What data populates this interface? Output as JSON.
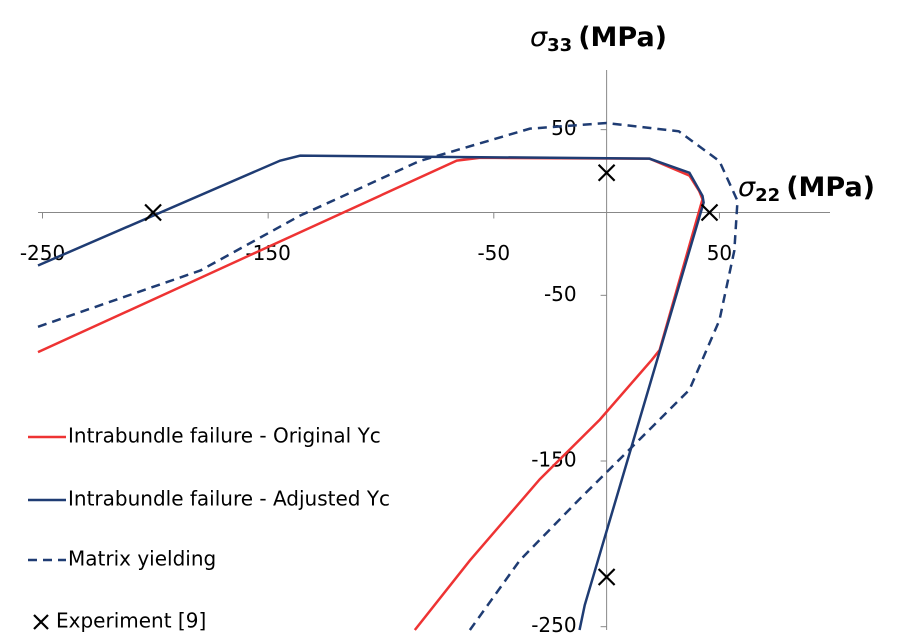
{
  "chart_data": {
    "type": "line",
    "x_label": {
      "symbol": "σ",
      "subscript": "22",
      "unit": "(MPa)"
    },
    "y_label": {
      "symbol": "σ",
      "subscript": "33",
      "unit": "(MPa)"
    },
    "xlim": [
      -252,
      99
    ],
    "ylim": [
      -252,
      86
    ],
    "xticks": [
      -250,
      -150,
      -50,
      50
    ],
    "yticks": [
      -250,
      -150,
      -50,
      50
    ],
    "grid": false,
    "legend": "lower left",
    "series": [
      {
        "name": "Intrabundle failure - Original Yc",
        "color": "#ee3333",
        "style": "solid",
        "x": [
          -252,
          -66.4,
          -56,
          19,
          36.7,
          41,
          42.5,
          23.5,
          20,
          -3,
          -29.6,
          -60.6,
          -85
        ],
        "y": [
          -84.3,
          31.3,
          33,
          32.5,
          22.3,
          13,
          8,
          -83,
          -89,
          -125,
          -161,
          -210,
          -252
        ]
      },
      {
        "name": "Intrabundle failure - Adjusted Yc",
        "color": "#1f3c73",
        "style": "solid",
        "x": [
          -252,
          -144.7,
          -135.8,
          19,
          36.7,
          42.5,
          43,
          -9.7,
          -12
        ],
        "y": [
          -32,
          31.3,
          34.3,
          32.5,
          24,
          10,
          6,
          -237,
          -252
        ]
      },
      {
        "name": "Matrix yielding",
        "color": "#1f3c73",
        "style": "dashed",
        "x": [
          -252,
          -180,
          -136,
          -83,
          -34,
          0,
          32,
          50,
          58,
          56.6,
          50,
          36.7,
          14.6,
          -12,
          -38.5,
          -60.6
        ],
        "y": [
          -69,
          -35,
          -2,
          31,
          50.6,
          54,
          49,
          31,
          7,
          -23,
          -65,
          -107,
          -137,
          -173,
          -210,
          -252
        ]
      },
      {
        "name": "Experiment [9]",
        "color": "#000000",
        "style": "markers",
        "x": [
          -201,
          0,
          45.6,
          0
        ],
        "y": [
          0,
          24,
          0,
          -220
        ]
      }
    ]
  }
}
